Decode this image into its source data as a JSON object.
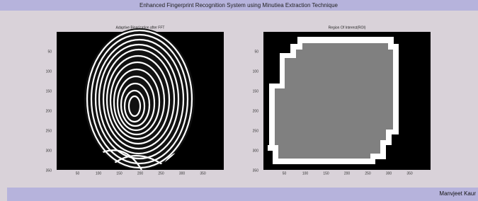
{
  "window": {
    "title": "Enhanced Fingerprint Recognition System using Minutiea Extraction Technique",
    "author": "Manvjeet Kaur"
  },
  "panels": [
    {
      "title": "Adaptive Binarization after FFT",
      "xticks": [
        50,
        100,
        150,
        200,
        250,
        300,
        350
      ],
      "yticks": [
        50,
        100,
        150,
        200,
        250,
        300,
        350
      ]
    },
    {
      "title": "Region Of Interest(ROI)",
      "xticks": [
        50,
        100,
        150,
        200,
        250,
        300,
        350
      ],
      "yticks": [
        50,
        100,
        150,
        200,
        250,
        300,
        350
      ]
    }
  ]
}
